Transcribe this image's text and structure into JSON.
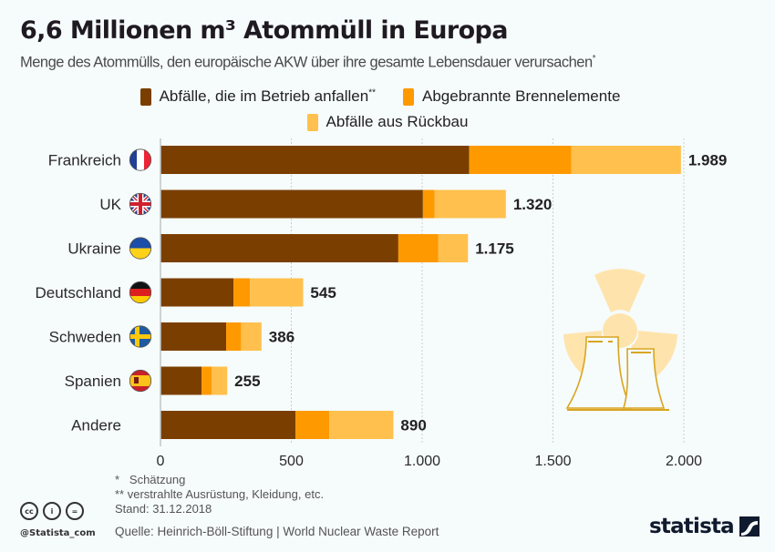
{
  "header": {
    "title": "6,6 Millionen m³ Atommüll in Europa",
    "subtitle": "Menge des Atommülls, den europäische AKW über ihre gesamte Lebensdauer verursachen",
    "subtitle_mark": "*"
  },
  "legend": [
    {
      "label": "Abfälle, die im Betrieb anfallen",
      "mark": "**",
      "color": "#7a3f00"
    },
    {
      "label": "Abgebrannte Brennelemente",
      "mark": "",
      "color": "#ff9900"
    },
    {
      "label": "Abfälle aus Rückbau",
      "mark": "",
      "color": "#ffc04d"
    }
  ],
  "chart_data": {
    "type": "bar",
    "orientation": "horizontal",
    "stacked": true,
    "title": "6,6 Millionen m³ Atommüll in Europa",
    "subtitle": "Menge des Atommülls, den europäische AKW über ihre gesamte Lebensdauer verursachen*",
    "xlabel": "",
    "ylabel": "",
    "xlim": [
      0,
      2000
    ],
    "xticks": [
      0,
      500,
      1000,
      1500,
      2000
    ],
    "xtick_labels": [
      "0",
      "500",
      "1.000",
      "1.500",
      "2.000"
    ],
    "grid": true,
    "legend_position": "top-center",
    "categories": [
      "Frankreich",
      "UK",
      "Ukraine",
      "Deutschland",
      "Schweden",
      "Spanien",
      "Andere"
    ],
    "flags": [
      "france-flag",
      "uk-flag",
      "ukraine-flag",
      "germany-flag",
      "sweden-flag",
      "spain-flag",
      ""
    ],
    "series": [
      {
        "name": "Abfälle, die im Betrieb anfallen**",
        "color": "#7a3f00",
        "values": [
          1180,
          1003,
          909,
          279,
          251,
          157,
          516
        ]
      },
      {
        "name": "Abgebrannte Brennelemente",
        "color": "#ff9900",
        "values": [
          390,
          45,
          153,
          63,
          57,
          38,
          129
        ]
      },
      {
        "name": "Abfälle aus Rückbau",
        "color": "#ffc04d",
        "values": [
          419,
          272,
          113,
          203,
          78,
          60,
          245
        ]
      }
    ],
    "totals": [
      1989,
      1320,
      1175,
      545,
      386,
      255,
      890
    ],
    "total_labels": [
      "1.989",
      "1.320",
      "1.175",
      "545",
      "386",
      "255",
      "890"
    ]
  },
  "footer": {
    "note1": "*   Schätzung",
    "note2": "** verstrahlte Ausrüstung, Kleidung, etc.",
    "stand": "Stand: 31.12.2018",
    "source": "Quelle: Heinrich-Böll-Stiftung | World Nuclear Waste Report",
    "handle": "@Statista_com",
    "cc_icons": [
      "cc",
      "i",
      "="
    ],
    "logo": "statista"
  }
}
